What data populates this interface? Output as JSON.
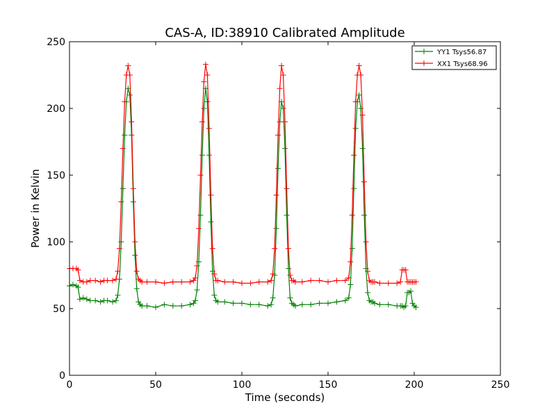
{
  "chart_data": {
    "type": "line",
    "title": "CAS-A, ID:38910 Calibrated Amplitude",
    "xlabel": "Time (seconds)",
    "ylabel": "Power in Kelvin",
    "xlim": [
      0,
      250
    ],
    "ylim": [
      0,
      250
    ],
    "xticks": [
      0,
      50,
      100,
      150,
      200,
      250
    ],
    "yticks": [
      0,
      50,
      100,
      150,
      200,
      250
    ],
    "grid": false,
    "legend_position": "top-right",
    "marker": "+",
    "series": [
      {
        "name": "YY1 Tsys56.87",
        "color": "#008000",
        "x": [
          0,
          2,
          4,
          5,
          6,
          8,
          10,
          12,
          15,
          18,
          20,
          22,
          25,
          27,
          28,
          29,
          30,
          31,
          32,
          33,
          34,
          35,
          36,
          37,
          38,
          39,
          40,
          41,
          42,
          45,
          50,
          55,
          60,
          65,
          70,
          72,
          73,
          74,
          75,
          76,
          77,
          78,
          79,
          80,
          81,
          82,
          83,
          84,
          85,
          86,
          90,
          95,
          100,
          105,
          110,
          115,
          117,
          118,
          119,
          120,
          121,
          122,
          123,
          124,
          125,
          126,
          127,
          128,
          129,
          130,
          131,
          135,
          140,
          145,
          150,
          155,
          160,
          162,
          163,
          164,
          165,
          166,
          167,
          168,
          169,
          170,
          171,
          172,
          173,
          174,
          175,
          176,
          177,
          180,
          185,
          190,
          192,
          193,
          194,
          195,
          196,
          197,
          198,
          199,
          200,
          201
        ],
        "y": [
          67,
          68,
          67,
          66,
          57,
          58,
          57,
          56,
          56,
          55,
          56,
          56,
          55,
          56,
          60,
          72,
          100,
          140,
          180,
          205,
          215,
          210,
          180,
          130,
          90,
          65,
          55,
          53,
          52,
          52,
          51,
          53,
          52,
          52,
          53,
          54,
          56,
          64,
          85,
          120,
          165,
          200,
          215,
          205,
          165,
          115,
          78,
          60,
          56,
          55,
          55,
          54,
          54,
          53,
          53,
          52,
          53,
          58,
          75,
          110,
          155,
          190,
          205,
          200,
          170,
          120,
          80,
          58,
          54,
          53,
          52,
          53,
          53,
          54,
          54,
          55,
          56,
          58,
          68,
          95,
          140,
          185,
          205,
          210,
          200,
          170,
          120,
          80,
          62,
          56,
          55,
          55,
          54,
          53,
          53,
          52,
          52,
          52,
          51,
          52,
          62,
          62,
          63,
          54,
          52,
          51
        ]
      },
      {
        "name": "XX1 Tsys68.96",
        "color": "#ff0000",
        "x": [
          0,
          2,
          4,
          5,
          6,
          8,
          10,
          12,
          15,
          18,
          20,
          22,
          25,
          27,
          28,
          29,
          30,
          31,
          32,
          33,
          34,
          35,
          36,
          37,
          38,
          39,
          40,
          41,
          42,
          45,
          50,
          55,
          60,
          65,
          70,
          72,
          73,
          74,
          75,
          76,
          77,
          78,
          79,
          80,
          81,
          82,
          83,
          84,
          85,
          86,
          90,
          95,
          100,
          105,
          110,
          115,
          117,
          118,
          119,
          120,
          121,
          122,
          123,
          124,
          125,
          126,
          127,
          128,
          129,
          130,
          131,
          135,
          140,
          145,
          150,
          155,
          160,
          162,
          163,
          164,
          165,
          166,
          167,
          168,
          169,
          170,
          171,
          172,
          173,
          174,
          175,
          176,
          177,
          180,
          185,
          190,
          192,
          193,
          194,
          195,
          196,
          197,
          198,
          199,
          200,
          201
        ],
        "y": [
          80,
          80,
          80,
          79,
          71,
          70,
          70,
          71,
          71,
          70,
          71,
          71,
          71,
          72,
          78,
          95,
          130,
          170,
          205,
          225,
          232,
          225,
          190,
          140,
          100,
          78,
          72,
          71,
          70,
          70,
          70,
          69,
          70,
          70,
          70,
          71,
          73,
          82,
          110,
          150,
          190,
          220,
          233,
          225,
          185,
          135,
          95,
          76,
          71,
          71,
          70,
          70,
          69,
          69,
          70,
          70,
          71,
          76,
          95,
          135,
          180,
          215,
          232,
          225,
          190,
          140,
          95,
          75,
          71,
          71,
          70,
          70,
          71,
          71,
          70,
          71,
          71,
          73,
          85,
          120,
          165,
          205,
          225,
          232,
          225,
          195,
          145,
          100,
          78,
          71,
          70,
          70,
          70,
          69,
          69,
          69,
          70,
          79,
          79,
          79,
          70,
          70,
          70,
          70,
          70,
          70
        ]
      }
    ]
  }
}
